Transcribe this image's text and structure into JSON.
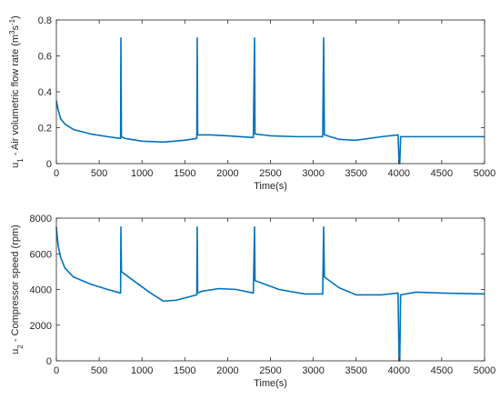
{
  "chart_data": [
    {
      "type": "line",
      "xlabel": "Time(s)",
      "ylabel": [
        {
          "text": "u"
        },
        {
          "text": "1",
          "shift": "sub"
        },
        {
          "text": " - Air volumetric flow rate (m"
        },
        {
          "text": "3",
          "shift": "super"
        },
        {
          "text": "s"
        },
        {
          "text": "-1",
          "shift": "super"
        },
        {
          "text": ")"
        }
      ],
      "x": [
        0,
        20,
        50,
        100,
        200,
        400,
        600,
        750,
        754,
        760,
        800,
        1000,
        1250,
        1500,
        1640,
        1645,
        1650,
        1800,
        2000,
        2300,
        2314,
        2320,
        2500,
        2800,
        3110,
        3121,
        3130,
        3300,
        3500,
        3800,
        3990,
        4002,
        4010,
        4020,
        4200,
        4500,
        5000
      ],
      "series": [
        {
          "name": "u1",
          "color": "#0072bd",
          "values": [
            0.35,
            0.3,
            0.25,
            0.22,
            0.19,
            0.165,
            0.15,
            0.14,
            0.7,
            0.15,
            0.14,
            0.125,
            0.12,
            0.13,
            0.14,
            0.7,
            0.16,
            0.16,
            0.155,
            0.145,
            0.7,
            0.165,
            0.155,
            0.15,
            0.15,
            0.7,
            0.16,
            0.135,
            0.13,
            0.15,
            0.16,
            0,
            0,
            0.15,
            0.15,
            0.15,
            0.15
          ]
        }
      ],
      "xlim": [
        0,
        5000
      ],
      "xticks": [
        0,
        500,
        1000,
        1500,
        2000,
        2500,
        3000,
        3500,
        4000,
        4500,
        5000
      ],
      "ylim": [
        0,
        0.8
      ],
      "yticks": [
        0,
        0.2,
        0.4,
        0.6,
        0.8
      ]
    },
    {
      "type": "line",
      "xlabel": "Time(s)",
      "ylabel": [
        {
          "text": "u"
        },
        {
          "text": "2",
          "shift": "sub"
        },
        {
          "text": " - Compressor speed (rpm)"
        }
      ],
      "x": [
        0,
        20,
        50,
        100,
        200,
        400,
        600,
        750,
        754,
        760,
        900,
        1100,
        1250,
        1400,
        1640,
        1645,
        1650,
        1700,
        1900,
        2100,
        2300,
        2314,
        2320,
        2600,
        2900,
        3110,
        3121,
        3130,
        3300,
        3500,
        3800,
        3990,
        4002,
        4010,
        4020,
        4200,
        4500,
        5000
      ],
      "series": [
        {
          "name": "u2",
          "color": "#0072bd",
          "values": [
            7500,
            6500,
            5800,
            5200,
            4700,
            4300,
            4000,
            3800,
            7500,
            5000,
            4500,
            3800,
            3350,
            3400,
            3700,
            7500,
            3800,
            3900,
            4050,
            4000,
            3800,
            7500,
            4500,
            4000,
            3750,
            3750,
            7500,
            4700,
            4100,
            3700,
            3700,
            3800,
            0,
            0,
            3700,
            3850,
            3800,
            3750
          ]
        }
      ],
      "xlim": [
        0,
        5000
      ],
      "xticks": [
        0,
        500,
        1000,
        1500,
        2000,
        2500,
        3000,
        3500,
        4000,
        4500,
        5000
      ],
      "ylim": [
        0,
        8000
      ],
      "yticks": [
        0,
        2000,
        4000,
        6000,
        8000
      ]
    }
  ]
}
